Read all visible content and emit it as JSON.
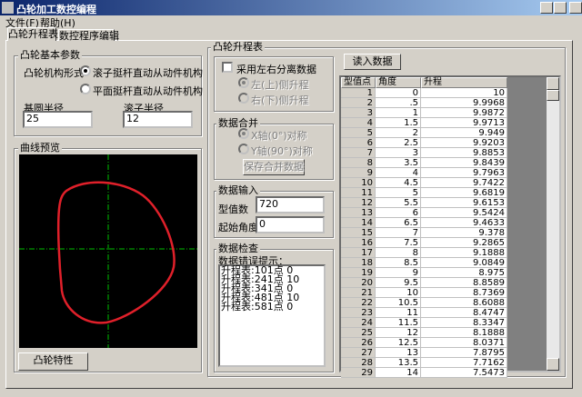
{
  "window": {
    "title": "凸轮加工数控编程"
  },
  "menu": [
    "文件(F)",
    "帮助(H)"
  ],
  "tabs": [
    "凸轮升程表",
    "数控程序编辑"
  ],
  "basic_params": {
    "title": "凸轮基本参数",
    "mechanism_label": "凸轮机构形式",
    "options": [
      "滚子挺杆直动从动件机构",
      "平面挺杆直动从动件机构"
    ],
    "base_radius_label": "基圆半径",
    "base_radius": "25",
    "roller_radius_label": "滚子半径",
    "roller_radius": "12"
  },
  "preview": {
    "title": "曲线预览",
    "button": "凸轮特性"
  },
  "lift_table": {
    "title": "凸轮升程表",
    "separate_checkbox": "采用左右分离数据",
    "sides": [
      "左(上)侧升程",
      "右(下)侧升程"
    ],
    "load_button": "读入数据",
    "columns": [
      "型值点",
      "角度",
      "升程"
    ],
    "rows": [
      [
        "1",
        "0",
        "10"
      ],
      [
        "2",
        ".5",
        "9.9968"
      ],
      [
        "3",
        "1",
        "9.9872"
      ],
      [
        "4",
        "1.5",
        "9.9713"
      ],
      [
        "5",
        "2",
        "9.949"
      ],
      [
        "6",
        "2.5",
        "9.9203"
      ],
      [
        "7",
        "3",
        "9.8853"
      ],
      [
        "8",
        "3.5",
        "9.8439"
      ],
      [
        "9",
        "4",
        "9.7963"
      ],
      [
        "10",
        "4.5",
        "9.7422"
      ],
      [
        "11",
        "5",
        "9.6819"
      ],
      [
        "12",
        "5.5",
        "9.6153"
      ],
      [
        "13",
        "6",
        "9.5424"
      ],
      [
        "14",
        "6.5",
        "9.4633"
      ],
      [
        "15",
        "7",
        "9.378"
      ],
      [
        "16",
        "7.5",
        "9.2865"
      ],
      [
        "17",
        "8",
        "9.1888"
      ],
      [
        "18",
        "8.5",
        "9.0849"
      ],
      [
        "19",
        "9",
        "8.975"
      ],
      [
        "20",
        "9.5",
        "8.8589"
      ],
      [
        "21",
        "10",
        "8.7369"
      ],
      [
        "22",
        "10.5",
        "8.6088"
      ],
      [
        "23",
        "11",
        "8.4747"
      ],
      [
        "24",
        "11.5",
        "8.3347"
      ],
      [
        "25",
        "12",
        "8.1888"
      ],
      [
        "26",
        "12.5",
        "8.0371"
      ],
      [
        "27",
        "13",
        "7.8795"
      ],
      [
        "28",
        "13.5",
        "7.7162"
      ],
      [
        "29",
        "14",
        "7.5473"
      ]
    ]
  },
  "merge": {
    "title": "数据合并",
    "options": [
      "X轴(0°)对称",
      "Y轴(90°)对称"
    ],
    "save_button": "保存合并数据"
  },
  "input": {
    "title": "数据输入",
    "count_label": "型值数",
    "count": "720",
    "start_label": "起始角度",
    "start": "0"
  },
  "check": {
    "title": "数据检查",
    "prompt": "数据错误提示：",
    "messages": [
      "升程表:101点 0",
      "升程表:241点 10",
      "升程表:341点 0",
      "升程表:481点 10",
      "升程表:581点 0"
    ]
  }
}
